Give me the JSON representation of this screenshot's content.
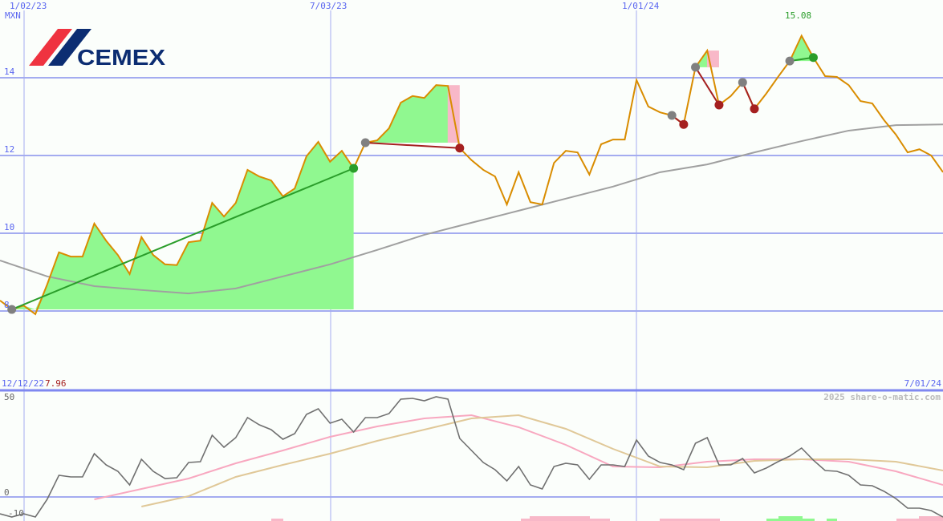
{
  "logo": {
    "text": "CEMEX",
    "colors": {
      "red": "#ef3340",
      "blue": "#0c2d72"
    }
  },
  "chart_data": [
    {
      "type": "line",
      "title": "",
      "ylabel": "MXN",
      "ylim": [
        7.05,
        15.3
      ],
      "y_ticks": [
        "14",
        "12",
        "10",
        "8"
      ],
      "x_ticks": [
        "1/02/23",
        "7/03/23",
        "1/01/24"
      ],
      "grid": true,
      "peak_label": "15.08",
      "series": [
        {
          "role": "price",
          "color": "#d98c00",
          "values": [
            8.27,
            8.04,
            8.14,
            7.92,
            8.68,
            9.51,
            9.4,
            9.4,
            10.25,
            9.81,
            9.44,
            8.95,
            9.9,
            9.44,
            9.2,
            9.18,
            9.77,
            9.81,
            10.78,
            10.43,
            10.78,
            11.63,
            11.46,
            11.36,
            10.95,
            11.15,
            11.98,
            12.35,
            11.84,
            12.12,
            11.67,
            12.33,
            12.39,
            12.7,
            13.36,
            13.53,
            13.48,
            13.81,
            13.79,
            12.19,
            11.88,
            11.63,
            11.46,
            10.74,
            11.57,
            10.8,
            10.74,
            11.81,
            12.12,
            12.08,
            11.51,
            12.29,
            12.41,
            12.41,
            13.94,
            13.26,
            13.11,
            13.03,
            12.8,
            14.27,
            14.7,
            13.3,
            13.53,
            13.88,
            13.2,
            13.59,
            14.02,
            14.43,
            15.08,
            14.52,
            14.04,
            14.02,
            13.81,
            13.4,
            13.34,
            12.91,
            12.54,
            12.08,
            12.16,
            12.0,
            11.57
          ]
        },
        {
          "role": "moving-average",
          "color": "#a0a0a0",
          "sample_every": 4,
          "values": [
            9.3,
            8.89,
            8.64,
            8.54,
            8.45,
            8.58,
            8.89,
            9.2,
            9.57,
            9.96,
            10.27,
            10.58,
            10.89,
            11.2,
            11.57,
            11.77,
            12.08,
            12.37,
            12.64,
            12.78,
            12.8
          ]
        }
      ],
      "signals": [
        {
          "from": 1,
          "to": 30,
          "result": "gain"
        },
        {
          "from": 31,
          "to": 39,
          "result": "loss"
        },
        {
          "from": 57,
          "to": 58,
          "result": "loss"
        },
        {
          "from": 59,
          "to": 61,
          "result": "loss"
        },
        {
          "from": 63,
          "to": 64,
          "result": "loss"
        },
        {
          "from": 67,
          "to": 69,
          "result": "gain"
        }
      ],
      "colors": {
        "gain": "#2a9d2a",
        "loss": "#a52020",
        "gain_fill": "#90f890",
        "loss_fill": "#f8b8c8",
        "open": "#808080"
      }
    },
    {
      "type": "line",
      "ylim": [
        -12,
        54
      ],
      "y_ticks": [
        "50",
        "0",
        "-10"
      ],
      "start_label": "12/12/22",
      "start_value": "7.96",
      "end_label": "7/01/24",
      "watermark": "2025 share-o-matic.com",
      "series": [
        {
          "role": "oscillator",
          "color": "#707070",
          "values": [
            -8.4,
            -10,
            -8.4,
            -10,
            -1.2,
            10.8,
            10,
            10,
            21.6,
            16,
            12.8,
            6,
            18.8,
            12.8,
            9.2,
            9.6,
            17.2,
            17.6,
            30.8,
            24.8,
            29.6,
            39.6,
            36,
            33.6,
            28.8,
            31.6,
            41.2,
            44,
            36.8,
            38.8,
            32.4,
            39.6,
            39.6,
            41.6,
            48.8,
            49.2,
            48,
            50,
            48.8,
            29.2,
            23.2,
            17.2,
            13.6,
            8,
            15.2,
            6,
            4,
            15.2,
            16.8,
            16,
            8.8,
            16,
            16,
            15.2,
            28.4,
            20.4,
            17.2,
            16,
            13.6,
            26.8,
            29.6,
            16,
            16,
            19.2,
            12,
            14.4,
            17.6,
            20.4,
            24.4,
            18.4,
            13.2,
            12.8,
            10.8,
            6,
            5.6,
            2.8,
            -0.8,
            -5.6,
            -5.6,
            -6.8,
            -10
          ]
        },
        {
          "role": "signal-fast",
          "color": "#f8a8c0",
          "sample_every": 4,
          "values": [
            null,
            null,
            -1.2,
            4,
            9.2,
            16.8,
            23.2,
            30,
            35.2,
            39.2,
            40.8,
            34.8,
            26,
            15.2,
            14.8,
            17.6,
            18.8,
            18.8,
            17.6,
            12.8,
            6
          ]
        },
        {
          "role": "signal-slow",
          "color": "#e0c898",
          "sample_every": 4,
          "values": [
            null,
            null,
            null,
            -4.8,
            0.4,
            10,
            16,
            21.6,
            28,
            33.6,
            39.2,
            40.8,
            34,
            24,
            15.2,
            14.8,
            18,
            18.8,
            18.8,
            17.6,
            13.2
          ]
        }
      ]
    }
  ]
}
